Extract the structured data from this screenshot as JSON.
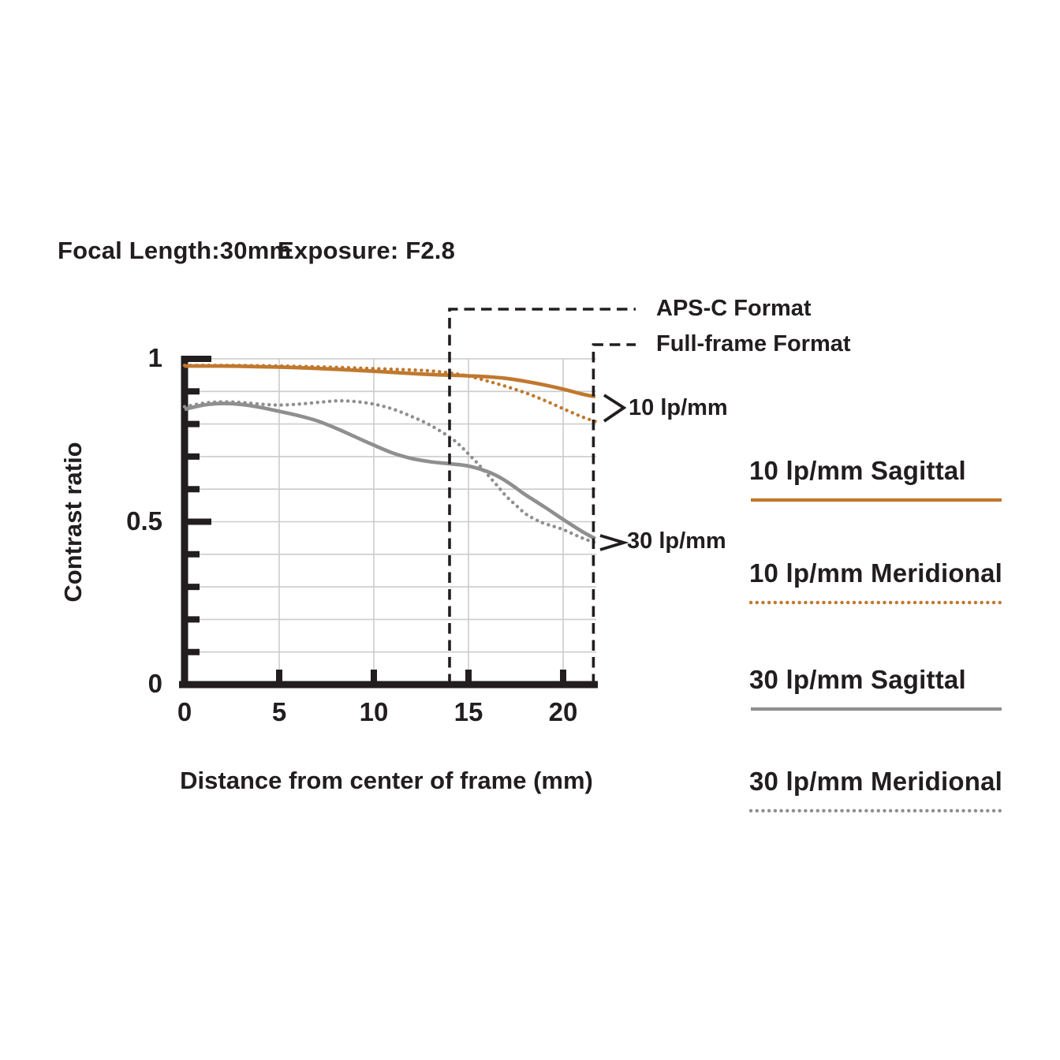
{
  "page": {
    "background": "#ffffff",
    "text_color": "#221e1f"
  },
  "header": {
    "focal_length_label": "Focal Length:30mm",
    "exposure_label": "Exposure: F2.8"
  },
  "chart_data": {
    "type": "line",
    "title": "",
    "xlabel": "Distance from center of frame (mm)",
    "ylabel": "Contrast ratio",
    "xlim": [
      0,
      21.75
    ],
    "ylim": [
      0,
      1
    ],
    "x_ticks": [
      {
        "value": 0,
        "label": "0"
      },
      {
        "value": 5,
        "label": "5"
      },
      {
        "value": 10,
        "label": "10"
      },
      {
        "value": 15,
        "label": "15"
      },
      {
        "value": 20,
        "label": "20"
      }
    ],
    "y_major_ticks": [
      {
        "value": 0,
        "label": "0"
      },
      {
        "value": 0.5,
        "label": "0.5"
      },
      {
        "value": 1,
        "label": "1"
      }
    ],
    "y_minor_tick_step": 0.1,
    "grid": {
      "vertical_lines_x": [
        5,
        10,
        15,
        20
      ],
      "horizontal_step": 0.1,
      "color": "#cccccc",
      "on": true
    },
    "axis_color": "#221e1f",
    "legend_position": "right",
    "annotations": {
      "aps_c": {
        "label": "APS-C Format",
        "x": 14.0
      },
      "full_frame": {
        "label": "Full-frame Format",
        "x": 21.6
      },
      "group_10lpmm": {
        "label": "10 lp/mm"
      },
      "group_30lpmm": {
        "label": "30 lp/mm"
      }
    },
    "series": [
      {
        "name": "10 lp/mm Sagittal",
        "color": "#c0782e",
        "line_style": "solid",
        "x": [
          0,
          2,
          4,
          6,
          8,
          10,
          12,
          13,
          14,
          15,
          16,
          17,
          18,
          19,
          20,
          21,
          21.7
        ],
        "y": [
          0.978,
          0.978,
          0.976,
          0.973,
          0.968,
          0.962,
          0.955,
          0.952,
          0.95,
          0.948,
          0.945,
          0.94,
          0.931,
          0.92,
          0.907,
          0.892,
          0.884
        ]
      },
      {
        "name": "10 lp/mm Meridional",
        "color": "#c0782e",
        "line_style": "dotted",
        "x": [
          0,
          2,
          4,
          6,
          8,
          10,
          12,
          13,
          14,
          15,
          16,
          17,
          18,
          19,
          20,
          21,
          21.7
        ],
        "y": [
          0.98,
          0.98,
          0.979,
          0.977,
          0.974,
          0.97,
          0.966,
          0.963,
          0.957,
          0.947,
          0.932,
          0.915,
          0.896,
          0.873,
          0.847,
          0.822,
          0.808
        ]
      },
      {
        "name": "30 lp/mm Sagittal",
        "color": "#8f8f8f",
        "line_style": "solid",
        "x": [
          0,
          1,
          2,
          3,
          4,
          5,
          6,
          7,
          8,
          9,
          10,
          11,
          12,
          13,
          14,
          15,
          16,
          16.5,
          17,
          17.5,
          18,
          19,
          20,
          21,
          21.7
        ],
        "y": [
          0.845,
          0.858,
          0.863,
          0.86,
          0.851,
          0.839,
          0.826,
          0.81,
          0.787,
          0.761,
          0.735,
          0.711,
          0.694,
          0.684,
          0.678,
          0.671,
          0.654,
          0.641,
          0.624,
          0.604,
          0.583,
          0.546,
          0.507,
          0.47,
          0.448
        ]
      },
      {
        "name": "30 lp/mm Meridional",
        "color": "#8f8f8f",
        "line_style": "dotted",
        "x": [
          0,
          1,
          2,
          3,
          4,
          5,
          6,
          7,
          8,
          9,
          10,
          11,
          12,
          13,
          14,
          14.5,
          15,
          15.5,
          16,
          16.5,
          17,
          17.5,
          18,
          18.5,
          19,
          20,
          21,
          21.7
        ],
        "y": [
          0.853,
          0.864,
          0.868,
          0.866,
          0.861,
          0.858,
          0.861,
          0.866,
          0.871,
          0.869,
          0.861,
          0.846,
          0.823,
          0.796,
          0.76,
          0.737,
          0.708,
          0.678,
          0.645,
          0.612,
          0.578,
          0.551,
          0.525,
          0.508,
          0.495,
          0.476,
          0.45,
          0.436
        ]
      }
    ]
  }
}
